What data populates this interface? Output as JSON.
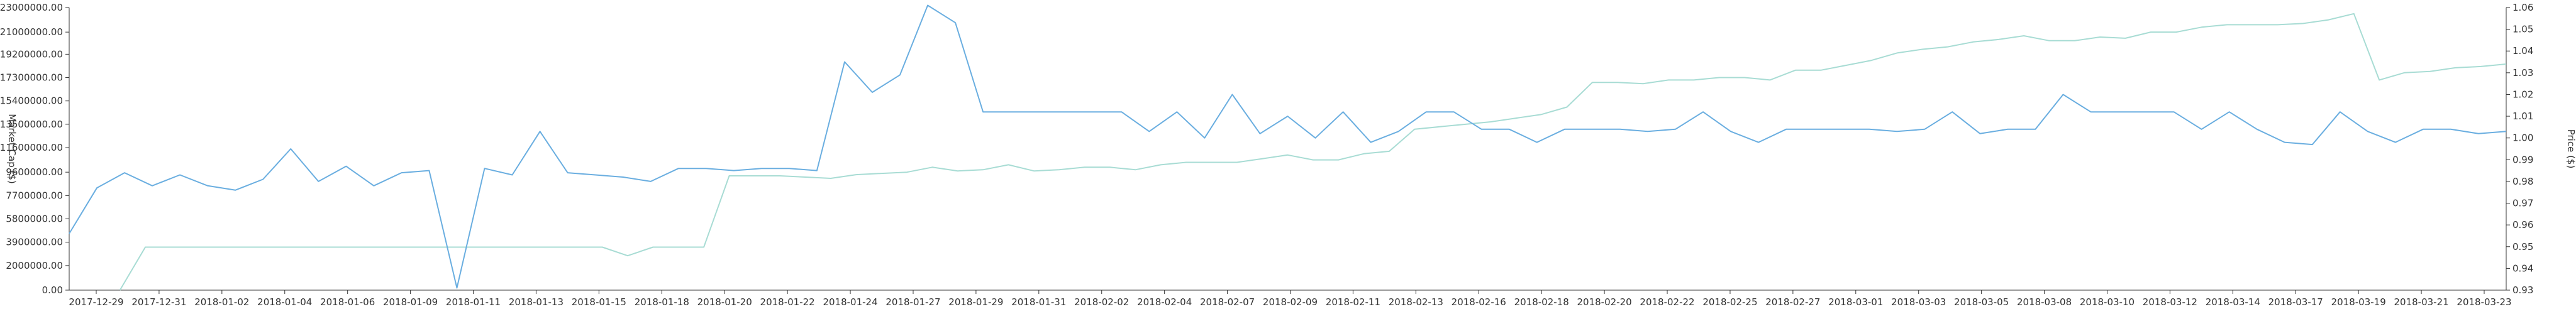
{
  "chart_data": {
    "type": "line",
    "title": "",
    "xlabel": "",
    "ylabel_left": "Market Cap ($)",
    "ylabel_right": "Price ($)",
    "grid": false,
    "legend": "none",
    "x_tick_labels": [
      "2017-12-29",
      "2017-12-31",
      "2018-01-02",
      "2018-01-04",
      "2018-01-06",
      "2018-01-09",
      "2018-01-11",
      "2018-01-13",
      "2018-01-15",
      "2018-01-18",
      "2018-01-20",
      "2018-01-22",
      "2018-01-24",
      "2018-01-27",
      "2018-01-29",
      "2018-01-31",
      "2018-02-02",
      "2018-02-04",
      "2018-02-07",
      "2018-02-09",
      "2018-02-11",
      "2018-02-13",
      "2018-02-16",
      "2018-02-18",
      "2018-02-20",
      "2018-02-22",
      "2018-02-25",
      "2018-02-27",
      "2018-03-01",
      "2018-03-03",
      "2018-03-05",
      "2018-03-08",
      "2018-03-10",
      "2018-03-12",
      "2018-03-14",
      "2018-03-17",
      "2018-03-19",
      "2018-03-21",
      "2018-03-23"
    ],
    "left_axis": {
      "ylim": [
        0,
        23000000
      ],
      "tick_values": [
        0,
        2000000,
        3900000,
        5800000,
        7700000,
        9600000,
        11600000,
        13500000,
        15400000,
        17300000,
        19200000,
        21000000,
        23000000
      ],
      "tick_labels": [
        "0.00",
        "2000000.00",
        "3900000.00",
        "5800000.00",
        "7700000.00",
        "9600000.00",
        "11600000.00",
        "13500000.00",
        "15400000.00",
        "17300000.00",
        "19200000.00",
        "21000000.00",
        "23000000.00"
      ]
    },
    "right_axis": {
      "ylim": [
        0.93,
        1.06
      ],
      "tick_values": [
        0.93,
        0.94,
        0.95,
        0.96,
        0.97,
        0.98,
        0.99,
        1.0,
        1.01,
        1.02,
        1.03,
        1.04,
        1.05,
        1.06
      ],
      "tick_labels": [
        "0.93",
        "0.94",
        "0.95",
        "0.96",
        "0.97",
        "0.98",
        "0.99",
        "1.00",
        "1.01",
        "1.02",
        "1.03",
        "1.04",
        "1.05",
        "1.06"
      ]
    },
    "series": [
      {
        "axis": "left",
        "color": "#a8dcd4",
        "values": [
          null,
          null,
          0,
          3500000,
          3500000,
          3500000,
          3500000,
          3500000,
          3500000,
          3500000,
          3500000,
          3500000,
          3500000,
          3500000,
          3500000,
          3500000,
          3500000,
          3500000,
          3500000,
          3500000,
          3500000,
          3500000,
          2800000,
          3500000,
          3500000,
          3500000,
          9300000,
          9300000,
          9300000,
          9200000,
          9100000,
          9400000,
          9500000,
          9600000,
          10000000,
          9700000,
          9800000,
          10200000,
          9700000,
          9800000,
          10000000,
          10000000,
          9800000,
          10200000,
          10400000,
          10400000,
          10400000,
          10700000,
          11000000,
          10600000,
          10600000,
          11100000,
          11300000,
          13100000,
          13300000,
          13500000,
          13700000,
          14000000,
          14300000,
          14900000,
          16900000,
          16900000,
          16800000,
          17100000,
          17100000,
          17300000,
          17300000,
          17100000,
          17900000,
          17900000,
          18300000,
          18700000,
          19300000,
          19600000,
          19800000,
          20200000,
          20400000,
          20700000,
          20300000,
          20300000,
          20600000,
          20500000,
          21000000,
          21000000,
          21400000,
          21600000,
          21600000,
          21600000,
          21700000,
          22000000,
          22500000,
          17100000,
          17700000,
          17800000,
          18100000,
          18200000,
          18400000
        ]
      },
      {
        "axis": "right",
        "color": "#6aaee0",
        "values": [
          0.956,
          0.977,
          0.984,
          0.978,
          0.983,
          0.978,
          0.976,
          0.981,
          0.995,
          0.98,
          0.987,
          0.978,
          0.984,
          0.985,
          0.931,
          0.986,
          0.983,
          1.003,
          0.984,
          0.983,
          0.982,
          0.98,
          0.986,
          0.986,
          0.985,
          0.986,
          0.986,
          0.985,
          1.035,
          1.021,
          1.029,
          1.061,
          1.053,
          1.012,
          1.012,
          1.012,
          1.012,
          1.012,
          1.012,
          1.003,
          1.012,
          1.0,
          1.02,
          1.002,
          1.01,
          1.0,
          1.012,
          0.998,
          1.003,
          1.012,
          1.012,
          1.004,
          1.004,
          0.998,
          1.004,
          1.004,
          1.004,
          1.003,
          1.004,
          1.012,
          1.003,
          0.998,
          1.004,
          1.004,
          1.004,
          1.004,
          1.003,
          1.004,
          1.012,
          1.002,
          1.004,
          1.004,
          1.02,
          1.012,
          1.012,
          1.012,
          1.012,
          1.004,
          1.012,
          1.004,
          0.998,
          0.997,
          1.012,
          1.003,
          0.998,
          1.004,
          1.004,
          1.002,
          1.003
        ]
      }
    ]
  }
}
